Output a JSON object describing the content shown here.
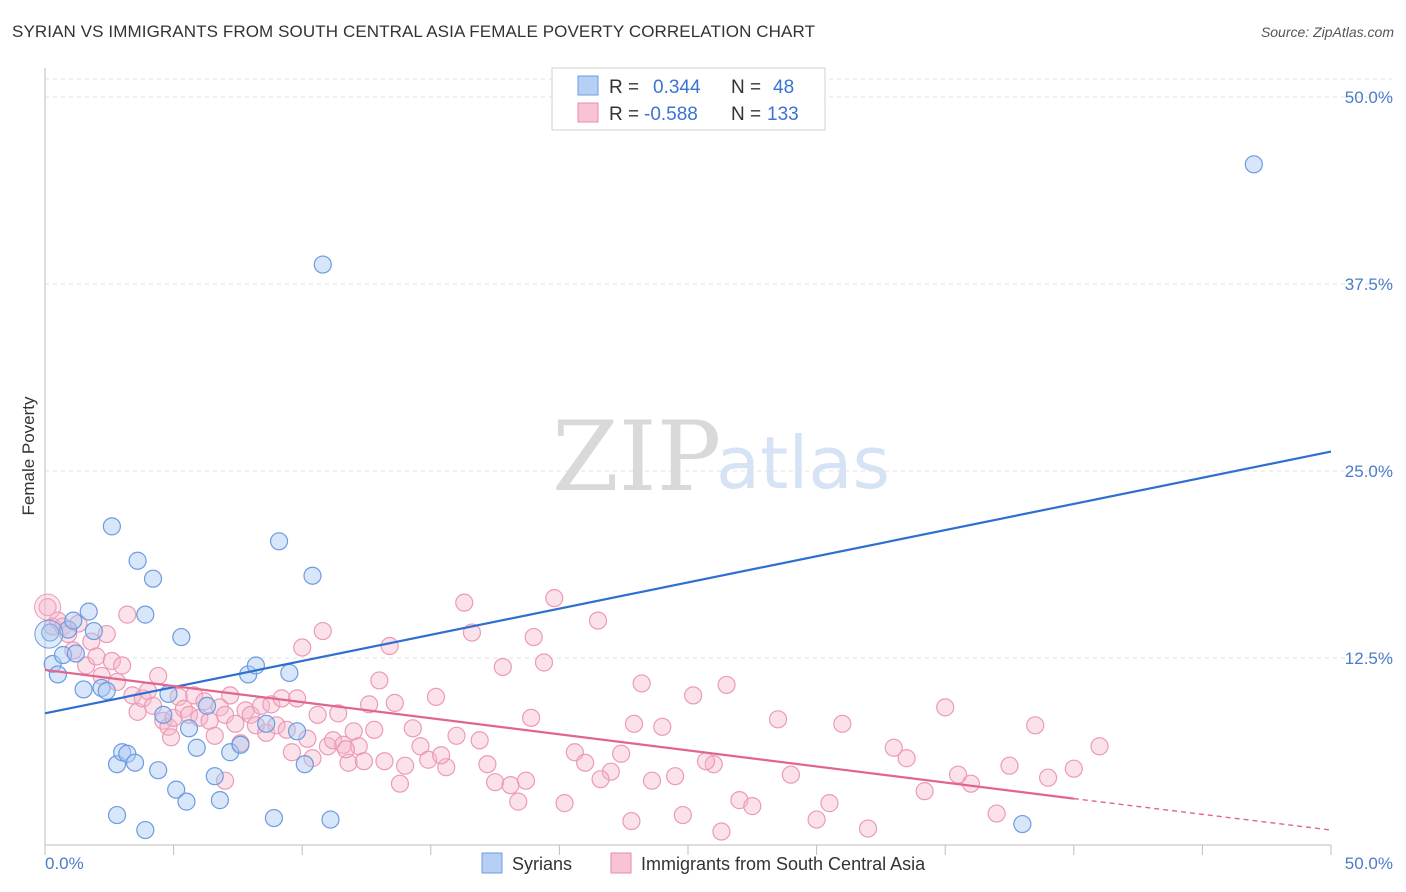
{
  "title": "SYRIAN VS IMMIGRANTS FROM SOUTH CENTRAL ASIA FEMALE POVERTY CORRELATION CHART",
  "source": "Source: ZipAtlas.com",
  "watermark": {
    "zip": "ZIP",
    "atlas": "atlas"
  },
  "colors": {
    "blue": "#4a86e8",
    "blue_fill": "#a9c8f2",
    "blue_line": "#2f6fd0",
    "pink": "#e8729a",
    "pink_fill": "#f5b7cb",
    "pink_line": "#e0658f",
    "accent_text": "#4a7cc9"
  },
  "chart_data": {
    "type": "scatter",
    "title": "SYRIAN VS IMMIGRANTS FROM SOUTH CENTRAL ASIA FEMALE POVERTY CORRELATION CHART",
    "xlabel": "",
    "ylabel": "Female Poverty",
    "xlim": [
      0,
      50
    ],
    "ylim": [
      0,
      52
    ],
    "x_ticks": [
      "0.0%",
      "50.0%"
    ],
    "y_ticks": [
      {
        "value": 12.5,
        "label": "12.5%"
      },
      {
        "value": 25.0,
        "label": "25.0%"
      },
      {
        "value": 37.5,
        "label": "37.5%"
      },
      {
        "value": 50.0,
        "label": "50.0%"
      }
    ],
    "grid": true,
    "legend_position": "top-center",
    "stats": [
      {
        "r_label": "R =",
        "r_value": "0.344",
        "n_label": "N =",
        "n_value": "48"
      },
      {
        "r_label": "R =",
        "r_value": "-0.588",
        "n_label": "N =",
        "n_value": "133"
      }
    ],
    "series": [
      {
        "name": "Syrians",
        "color": "#4a86e8",
        "trend": {
          "x0": 0,
          "y0": 8.8,
          "x1": 50,
          "y1": 26.3
        },
        "points": [
          [
            0.2,
            14.2
          ],
          [
            0.3,
            12.1
          ],
          [
            0.5,
            11.4
          ],
          [
            0.7,
            12.7
          ],
          [
            0.9,
            14.4
          ],
          [
            1.1,
            15.0
          ],
          [
            1.2,
            12.8
          ],
          [
            1.5,
            10.4
          ],
          [
            1.7,
            15.6
          ],
          [
            1.9,
            14.3
          ],
          [
            2.2,
            10.5
          ],
          [
            2.4,
            10.3
          ],
          [
            2.6,
            21.3
          ],
          [
            2.8,
            5.4
          ],
          [
            3.0,
            6.2
          ],
          [
            3.2,
            6.1
          ],
          [
            3.5,
            5.5
          ],
          [
            3.6,
            19.0
          ],
          [
            3.9,
            15.4
          ],
          [
            4.2,
            17.8
          ],
          [
            4.4,
            5.0
          ],
          [
            4.6,
            8.7
          ],
          [
            4.8,
            10.1
          ],
          [
            5.1,
            3.7
          ],
          [
            5.3,
            13.9
          ],
          [
            5.6,
            7.8
          ],
          [
            5.9,
            6.5
          ],
          [
            6.3,
            9.3
          ],
          [
            6.6,
            4.6
          ],
          [
            6.8,
            3.0
          ],
          [
            7.2,
            6.2
          ],
          [
            7.6,
            6.7
          ],
          [
            7.9,
            11.4
          ],
          [
            8.2,
            12.0
          ],
          [
            8.6,
            8.1
          ],
          [
            9.1,
            20.3
          ],
          [
            9.5,
            11.5
          ],
          [
            9.8,
            7.6
          ],
          [
            10.1,
            5.4
          ],
          [
            10.4,
            18.0
          ],
          [
            10.8,
            38.8
          ],
          [
            11.1,
            1.7
          ],
          [
            2.8,
            2.0
          ],
          [
            3.9,
            1.0
          ],
          [
            5.5,
            2.9
          ],
          [
            8.9,
            1.8
          ],
          [
            38.0,
            1.4
          ],
          [
            47.0,
            45.5
          ]
        ]
      },
      {
        "name": "Immigrants from South Central Asia",
        "color": "#e8729a",
        "trend": {
          "x0": 0,
          "y0": 11.7,
          "x1": 40,
          "y1": 3.1
        },
        "trend_dashed": {
          "x0": 40,
          "y0": 3.1,
          "x1": 50,
          "y1": 1.0
        },
        "points": [
          [
            0.1,
            15.9
          ],
          [
            0.3,
            14.6
          ],
          [
            0.5,
            15.0
          ],
          [
            0.7,
            14.6
          ],
          [
            0.9,
            14.1
          ],
          [
            1.1,
            13.0
          ],
          [
            1.3,
            14.8
          ],
          [
            1.6,
            12.0
          ],
          [
            1.8,
            13.6
          ],
          [
            2.0,
            12.6
          ],
          [
            2.2,
            11.3
          ],
          [
            2.4,
            14.1
          ],
          [
            2.6,
            12.3
          ],
          [
            2.8,
            10.9
          ],
          [
            3.0,
            12.0
          ],
          [
            3.2,
            15.4
          ],
          [
            3.4,
            10.0
          ],
          [
            3.6,
            8.9
          ],
          [
            3.8,
            9.8
          ],
          [
            4.0,
            10.3
          ],
          [
            4.2,
            9.3
          ],
          [
            4.4,
            11.3
          ],
          [
            4.6,
            8.3
          ],
          [
            4.8,
            7.9
          ],
          [
            5.0,
            8.5
          ],
          [
            5.2,
            9.9
          ],
          [
            5.4,
            9.1
          ],
          [
            5.6,
            8.7
          ],
          [
            5.8,
            10.0
          ],
          [
            6.0,
            8.5
          ],
          [
            6.2,
            9.6
          ],
          [
            6.4,
            8.3
          ],
          [
            6.6,
            7.3
          ],
          [
            6.8,
            9.2
          ],
          [
            7.0,
            8.7
          ],
          [
            7.2,
            10.0
          ],
          [
            7.4,
            8.1
          ],
          [
            7.6,
            6.8
          ],
          [
            7.8,
            9.0
          ],
          [
            8.0,
            8.7
          ],
          [
            8.2,
            8.0
          ],
          [
            8.4,
            9.3
          ],
          [
            8.6,
            7.5
          ],
          [
            8.8,
            9.4
          ],
          [
            9.0,
            8.0
          ],
          [
            9.2,
            9.8
          ],
          [
            9.4,
            7.7
          ],
          [
            9.6,
            6.2
          ],
          [
            9.8,
            9.8
          ],
          [
            10.0,
            13.2
          ],
          [
            10.2,
            7.1
          ],
          [
            10.4,
            5.8
          ],
          [
            10.6,
            8.7
          ],
          [
            10.8,
            14.3
          ],
          [
            11.0,
            6.6
          ],
          [
            11.2,
            7.0
          ],
          [
            11.4,
            8.8
          ],
          [
            11.6,
            6.7
          ],
          [
            11.8,
            5.5
          ],
          [
            12.0,
            7.6
          ],
          [
            12.2,
            6.6
          ],
          [
            12.4,
            5.6
          ],
          [
            12.6,
            9.4
          ],
          [
            12.8,
            7.7
          ],
          [
            13.0,
            11.0
          ],
          [
            13.2,
            5.6
          ],
          [
            13.4,
            13.3
          ],
          [
            13.6,
            9.5
          ],
          [
            14.0,
            5.3
          ],
          [
            14.3,
            7.8
          ],
          [
            14.6,
            6.6
          ],
          [
            14.9,
            5.7
          ],
          [
            15.2,
            9.9
          ],
          [
            15.6,
            5.2
          ],
          [
            16.0,
            7.3
          ],
          [
            16.3,
            16.2
          ],
          [
            16.6,
            14.2
          ],
          [
            16.9,
            7.0
          ],
          [
            17.2,
            5.4
          ],
          [
            17.5,
            4.2
          ],
          [
            17.8,
            11.9
          ],
          [
            18.1,
            4.0
          ],
          [
            18.4,
            2.9
          ],
          [
            18.7,
            4.3
          ],
          [
            19.0,
            13.9
          ],
          [
            19.4,
            12.2
          ],
          [
            19.8,
            16.5
          ],
          [
            20.2,
            2.8
          ],
          [
            20.6,
            6.2
          ],
          [
            21.0,
            5.5
          ],
          [
            21.5,
            15.0
          ],
          [
            22.0,
            4.9
          ],
          [
            22.4,
            6.1
          ],
          [
            22.8,
            1.6
          ],
          [
            23.2,
            10.8
          ],
          [
            23.6,
            4.3
          ],
          [
            24.0,
            7.9
          ],
          [
            24.5,
            4.6
          ],
          [
            24.8,
            2.0
          ],
          [
            25.2,
            10.0
          ],
          [
            26.0,
            5.4
          ],
          [
            26.5,
            10.7
          ],
          [
            27.0,
            3.0
          ],
          [
            27.5,
            2.6
          ],
          [
            28.5,
            8.4
          ],
          [
            29.0,
            4.7
          ],
          [
            30.0,
            1.7
          ],
          [
            31.0,
            8.1
          ],
          [
            32.0,
            1.1
          ],
          [
            33.0,
            6.5
          ],
          [
            33.5,
            5.8
          ],
          [
            35.0,
            9.2
          ],
          [
            35.5,
            4.7
          ],
          [
            36.0,
            4.1
          ],
          [
            37.0,
            2.1
          ],
          [
            37.5,
            5.3
          ],
          [
            38.5,
            8.0
          ],
          [
            39.0,
            4.5
          ],
          [
            40.0,
            5.1
          ],
          [
            41.0,
            6.6
          ],
          [
            7.0,
            4.3
          ],
          [
            13.8,
            4.1
          ],
          [
            18.9,
            8.5
          ],
          [
            21.6,
            4.4
          ],
          [
            25.7,
            5.6
          ],
          [
            26.3,
            0.9
          ],
          [
            30.5,
            2.8
          ],
          [
            34.2,
            3.6
          ],
          [
            11.7,
            6.4
          ],
          [
            15.4,
            6.0
          ],
          [
            22.9,
            8.1
          ],
          [
            4.9,
            7.2
          ]
        ]
      }
    ]
  }
}
